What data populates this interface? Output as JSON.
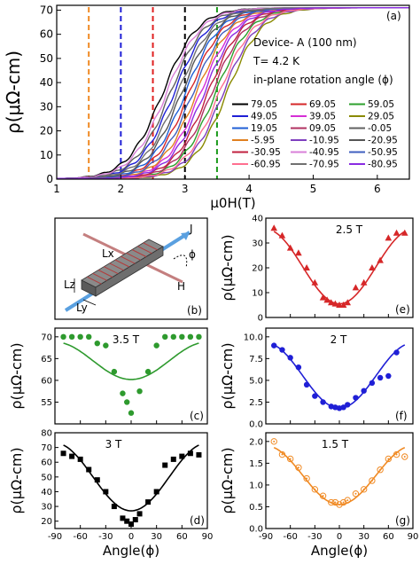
{
  "figure": {
    "panel_a": {
      "label": "(a)",
      "ylabel": "ρ(μΩ-cm)",
      "xlabel": "μ0H(T)",
      "annotations": [
        "Device- A (100 nm)",
        "T= 4.2 K",
        "in-plane rotation angle (ϕ)"
      ],
      "legend": [
        {
          "label": "79.05",
          "color": "#000000"
        },
        {
          "label": "69.05",
          "color": "#d62728"
        },
        {
          "label": "59.05",
          "color": "#2ca02c"
        },
        {
          "label": "49.05",
          "color": "#1f1fd6"
        },
        {
          "label": "39.05",
          "color": "#d62fd6"
        },
        {
          "label": "29.05",
          "color": "#8a8a00"
        },
        {
          "label": "19.05",
          "color": "#1f5fd6"
        },
        {
          "label": "09.05",
          "color": "#b03060"
        },
        {
          "label": "-0.05",
          "color": "#606060"
        },
        {
          "label": "-5.95",
          "color": "#e08020"
        },
        {
          "label": "-10.95",
          "color": "#7f3fbf"
        },
        {
          "label": "-20.95",
          "color": "#555555"
        },
        {
          "label": "-30.95",
          "color": "#c0203f"
        },
        {
          "label": "-40.95",
          "color": "#d87fd8"
        },
        {
          "label": "-50.95",
          "color": "#3f5fbf"
        },
        {
          "label": "-60.95",
          "color": "#ff6f90"
        },
        {
          "label": "-70.95",
          "color": "#707070"
        },
        {
          "label": "-80.95",
          "color": "#8a2be2"
        }
      ]
    },
    "panel_b": {
      "label": "(b)",
      "symbols": {
        "j": "J",
        "phi": "ϕ",
        "h": "H",
        "lx": "Lx",
        "lz": "Lz",
        "ly": "Ly"
      }
    },
    "panel_c": {
      "label": "(c)",
      "annotation": "3.5 T",
      "ylabel": "ρ(μΩ-cm)"
    },
    "panel_d": {
      "label": "(d)",
      "annotation": "3 T",
      "ylabel": "ρ(μΩ-cm)",
      "xlabel": "Angle(ϕ)"
    },
    "panel_e": {
      "label": "(e)",
      "annotation": "2.5 T",
      "ylabel": "ρ(μΩ-cm)"
    },
    "panel_f": {
      "label": "(f)",
      "annotation": "2 T",
      "ylabel": "ρ(μΩ-cm)"
    },
    "panel_g": {
      "label": "(g)",
      "annotation": "1.5 T",
      "ylabel": "ρ(μΩ-cm)",
      "xlabel": "Angle(ϕ)"
    }
  },
  "chart_data": [
    {
      "id": "a",
      "type": "line",
      "xlim": [
        1,
        6.5
      ],
      "ylim": [
        0,
        72
      ],
      "xticks": [
        1,
        2,
        3,
        4,
        5,
        6
      ],
      "yticks": [
        0,
        10,
        20,
        30,
        40,
        50,
        60,
        70
      ],
      "vlines": [
        {
          "x": 1.5,
          "color": "#f08a24"
        },
        {
          "x": 2.0,
          "color": "#1f1fd6"
        },
        {
          "x": 2.5,
          "color": "#e02020"
        },
        {
          "x": 3.0,
          "color": "#000000"
        },
        {
          "x": 3.5,
          "color": "#1a9a1a"
        }
      ],
      "curve_model": {
        "rho_max": 71,
        "width": 0.55,
        "x_mid_range": [
          2.65,
          3.65
        ]
      }
    },
    {
      "id": "c",
      "type": "scatter",
      "color": "#2e9a2e",
      "marker": "circle",
      "xlim": [
        -90,
        90
      ],
      "ylim": [
        50,
        72
      ],
      "yticks": [
        55,
        60,
        65,
        70
      ],
      "x": [
        -80,
        -70,
        -60,
        -50,
        -40,
        -30,
        -20,
        -10,
        -5,
        0,
        10,
        20,
        30,
        40,
        50,
        60,
        70,
        80
      ],
      "y": [
        70,
        70,
        70,
        70,
        68.5,
        68,
        62,
        57,
        55,
        52.5,
        57.5,
        62,
        68,
        70,
        70,
        70,
        70,
        70
      ],
      "fit": {
        "baseline": 60.2,
        "amplitude": 8.6
      }
    },
    {
      "id": "d",
      "type": "scatter",
      "color": "#000000",
      "marker": "square",
      "xlim": [
        -90,
        90
      ],
      "ylim": [
        15,
        80
      ],
      "xticks": [
        -90,
        -60,
        -30,
        0,
        30,
        60,
        90
      ],
      "yticks": [
        20,
        30,
        40,
        50,
        60,
        70,
        80
      ],
      "x": [
        -80,
        -70,
        -60,
        -50,
        -40,
        -30,
        -20,
        -10,
        -5,
        0,
        5,
        10,
        20,
        30,
        40,
        50,
        60,
        70,
        80
      ],
      "y": [
        66,
        64,
        62,
        55,
        48,
        40,
        30,
        22,
        20,
        18,
        21,
        25,
        33,
        40,
        58,
        62,
        64,
        66,
        65
      ],
      "fit": {
        "baseline": 27,
        "amplitude": 46
      }
    },
    {
      "id": "e",
      "type": "scatter",
      "color": "#d62728",
      "marker": "triangle",
      "xlim": [
        -90,
        90
      ],
      "ylim": [
        0,
        40
      ],
      "yticks": [
        0,
        10,
        20,
        30,
        40
      ],
      "x": [
        -80,
        -70,
        -60,
        -50,
        -40,
        -30,
        -20,
        -15,
        -10,
        -5,
        0,
        5,
        10,
        20,
        30,
        40,
        50,
        60,
        70,
        80
      ],
      "y": [
        36,
        33,
        28,
        26,
        20,
        14,
        8,
        7,
        6,
        5.5,
        5,
        5,
        6,
        12,
        14,
        20,
        23,
        32,
        34,
        34
      ],
      "fit": {
        "baseline": 5.5,
        "amplitude": 30
      }
    },
    {
      "id": "f",
      "type": "scatter",
      "color": "#1f1fd6",
      "marker": "circle",
      "xlim": [
        -90,
        90
      ],
      "ylim": [
        0,
        11
      ],
      "yticks": [
        0,
        2.5,
        5.0,
        7.5,
        10.0
      ],
      "x": [
        -80,
        -70,
        -60,
        -50,
        -40,
        -30,
        -20,
        -10,
        -5,
        0,
        5,
        10,
        20,
        30,
        40,
        50,
        60,
        70
      ],
      "y": [
        9,
        8.5,
        7.6,
        6.5,
        4.5,
        3.2,
        2.5,
        2.0,
        1.9,
        1.8,
        1.9,
        2.2,
        3.0,
        3.8,
        4.7,
        5.3,
        5.5,
        8.2
      ],
      "fit": {
        "baseline": 1.8,
        "amplitude": 7.5
      }
    },
    {
      "id": "g",
      "type": "scatter",
      "color": "#f08a24",
      "marker": "circled-dot",
      "xlim": [
        -90,
        90
      ],
      "ylim": [
        0,
        2.2
      ],
      "xticks": [
        -90,
        -60,
        -30,
        0,
        30,
        60,
        90
      ],
      "yticks": [
        0,
        0.5,
        1.0,
        1.5,
        2.0
      ],
      "x": [
        -80,
        -70,
        -60,
        -50,
        -40,
        -30,
        -20,
        -10,
        -5,
        0,
        5,
        10,
        20,
        30,
        40,
        50,
        60,
        70,
        80
      ],
      "y": [
        2.0,
        1.7,
        1.6,
        1.4,
        1.15,
        0.9,
        0.75,
        0.6,
        0.6,
        0.55,
        0.6,
        0.65,
        0.8,
        0.9,
        1.1,
        1.35,
        1.6,
        1.7,
        1.65
      ],
      "fit": {
        "baseline": 0.55,
        "amplitude": 1.35
      }
    }
  ]
}
